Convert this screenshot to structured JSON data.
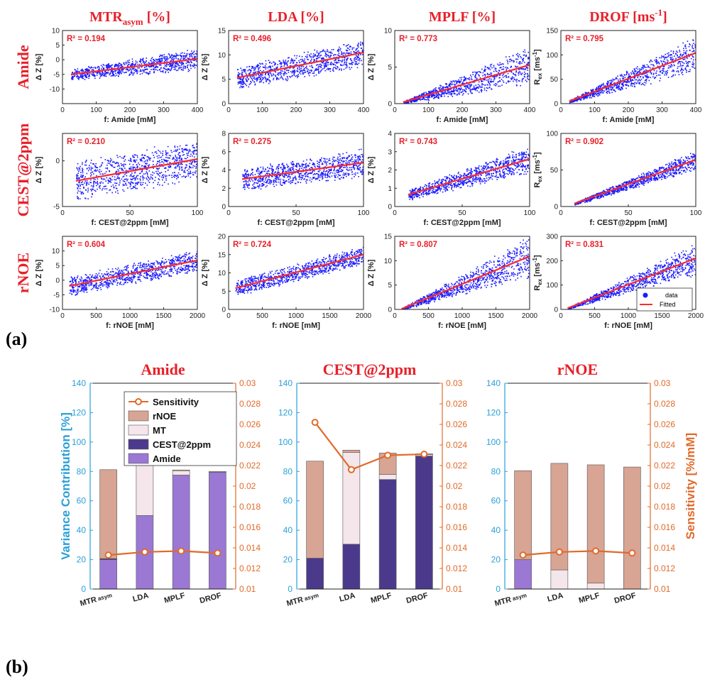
{
  "panel_labels": [
    "(a)",
    "(b)"
  ],
  "colors": {
    "title_red": "#e8202a",
    "scatter_blue": "#1a1aff",
    "fit_red": "#ff2a2a",
    "left_axis": "#2aa0d8",
    "right_axis": "#e06a2a",
    "amide": "#9a78d4",
    "cest2ppm": "#4b3a8c",
    "mt": "#f4e6ea",
    "rnoe": "#d8a494",
    "sensitivity": "#e06a2a"
  },
  "chart_data": [
    {
      "type": "scatter",
      "panel": "(a)",
      "col_titles": [
        {
          "base": "MTR",
          "sub": "asym",
          "tail": " [%]"
        },
        {
          "base": "LDA [%]",
          "sub": "",
          "tail": ""
        },
        {
          "base": "MPLF [%]",
          "sub": "",
          "tail": ""
        },
        {
          "base": "DROF [ms",
          "sup": "-1",
          "tail": "]"
        }
      ],
      "row_titles": [
        "Amide",
        "CEST@2ppm",
        "rNOE"
      ],
      "legend": {
        "entries": [
          "data",
          "Fitted"
        ],
        "placement": "bottom-right of row 3, col 4"
      },
      "subplots": [
        {
          "row": 0,
          "col": 0,
          "r2": "R² = 0.194",
          "xlabel": "f: Amide [mM]",
          "ylabel": "Δ Z [%]",
          "xlim": [
            0,
            400
          ],
          "ylim": [
            -15,
            10
          ],
          "xticks": [
            0,
            100,
            200,
            300,
            400
          ],
          "yticks": [
            -10,
            -5,
            0,
            5,
            10
          ],
          "x": [
            25,
            400
          ],
          "fit": [
            -5,
            0.3
          ],
          "band": [
            [
              25,
              400
            ],
            [
              -10,
              -12,
              -6,
              6,
              8,
              2
            ]
          ],
          "shape": "flat"
        },
        {
          "row": 0,
          "col": 1,
          "r2": "R² = 0.496",
          "xlabel": "",
          "ylabel": "Δ Z [%]",
          "xlim": [
            0,
            400
          ],
          "ylim": [
            0,
            15
          ],
          "xticks": [
            0,
            100,
            200,
            300,
            400
          ],
          "yticks": [
            0,
            5,
            10,
            15
          ],
          "x": [
            25,
            400
          ],
          "fit": [
            5.3,
            10.5
          ],
          "shape": "flat",
          "spread": [
            2.5,
            3
          ]
        },
        {
          "row": 0,
          "col": 2,
          "r2": "R² = 0.773",
          "xlabel": "f: Amide [mM]",
          "ylabel": "Δ Z [%]",
          "xlim": [
            0,
            400
          ],
          "ylim": [
            0,
            10
          ],
          "xticks": [
            0,
            100,
            200,
            300,
            400
          ],
          "yticks": [
            0,
            5,
            10
          ],
          "x": [
            25,
            400
          ],
          "fit": [
            0.2,
            5.3
          ],
          "shape": "fan",
          "spread": [
            0.2,
            2.8
          ]
        },
        {
          "row": 0,
          "col": 3,
          "r2": "R² = 0.795",
          "xlabel": "f: Amide [mM]",
          "ylabel": "R_ex [ms^-1]",
          "xlim": [
            0,
            400
          ],
          "ylim": [
            0,
            150
          ],
          "xticks": [
            0,
            100,
            200,
            300,
            400
          ],
          "yticks": [
            0,
            50,
            100,
            150
          ],
          "x": [
            25,
            400
          ],
          "fit": [
            5,
            104
          ],
          "shape": "fan",
          "spread": [
            3,
            40
          ]
        },
        {
          "row": 1,
          "col": 0,
          "r2": "R² = 0.210",
          "xlabel": "f: CEST@2ppm [mM]",
          "ylabel": "Δ Z [%]",
          "xlim": [
            0,
            100
          ],
          "ylim": [
            -5,
            3
          ],
          "xticks": [
            0,
            50,
            100
          ],
          "yticks": [
            -5,
            0
          ],
          "x": [
            10,
            100
          ],
          "fit": [
            -2.2,
            0.2
          ],
          "shape": "flat",
          "spread": [
            2.3,
            2.3
          ]
        },
        {
          "row": 1,
          "col": 1,
          "r2": "R² = 0.275",
          "xlabel": "f: CEST@2ppm [mM]",
          "ylabel": "Δ Z [%]",
          "xlim": [
            0,
            100
          ],
          "ylim": [
            0,
            8
          ],
          "xticks": [
            0,
            50,
            100
          ],
          "yticks": [
            0,
            2,
            4,
            6,
            8
          ],
          "x": [
            10,
            100
          ],
          "fit": [
            3,
            4.8
          ],
          "shape": "flat",
          "spread": [
            1.3,
            1.6
          ]
        },
        {
          "row": 1,
          "col": 2,
          "r2": "R² = 0.743",
          "xlabel": "f: CEST@2ppm [mM]",
          "ylabel": "Δ Z [%]",
          "xlim": [
            0,
            100
          ],
          "ylim": [
            0,
            4
          ],
          "xticks": [
            0,
            50,
            100
          ],
          "yticks": [
            0,
            1,
            2,
            3,
            4
          ],
          "x": [
            10,
            100
          ],
          "fit": [
            0.65,
            2.6
          ],
          "shape": "fan",
          "spread": [
            0.3,
            0.8
          ]
        },
        {
          "row": 1,
          "col": 3,
          "r2": "R² = 0.902",
          "xlabel": "f: CEST@2ppm [mM]",
          "ylabel": "R_ex [ms^-1]",
          "xlim": [
            0,
            100
          ],
          "ylim": [
            0,
            100
          ],
          "xticks": [
            0,
            50,
            100
          ],
          "yticks": [
            0,
            50,
            100
          ],
          "x": [
            10,
            100
          ],
          "fit": [
            4,
            64
          ],
          "shape": "fan",
          "spread": [
            2,
            15
          ]
        },
        {
          "row": 2,
          "col": 0,
          "r2": "R² = 0.604",
          "xlabel": "f: rNOE [mM]",
          "ylabel": "Δ Z [%]",
          "xlim": [
            0,
            2000
          ],
          "ylim": [
            -10,
            15
          ],
          "xticks": [
            0,
            500,
            1000,
            1500,
            2000
          ],
          "yticks": [
            -10,
            -5,
            0,
            5,
            10
          ],
          "x": [
            100,
            2000
          ],
          "fit": [
            -2,
            6.8
          ],
          "shape": "flat",
          "spread": [
            3.5,
            4
          ]
        },
        {
          "row": 2,
          "col": 1,
          "r2": "R² = 0.724",
          "xlabel": "f: rNOE [mM]",
          "ylabel": "Δ Z [%]",
          "xlim": [
            0,
            2000
          ],
          "ylim": [
            0,
            20
          ],
          "xticks": [
            0,
            500,
            1000,
            1500,
            2000
          ],
          "yticks": [
            0,
            5,
            10,
            15,
            20
          ],
          "x": [
            100,
            2000
          ],
          "fit": [
            5.8,
            15
          ],
          "shape": "flat",
          "spread": [
            2.3,
            2.8
          ]
        },
        {
          "row": 2,
          "col": 2,
          "r2": "R² = 0.807",
          "xlabel": "f: rNOE [mM]",
          "ylabel": "Δ Z [%]",
          "xlim": [
            0,
            2000
          ],
          "ylim": [
            0,
            15
          ],
          "xticks": [
            0,
            500,
            1000,
            1500,
            2000
          ],
          "yticks": [
            0,
            5,
            10,
            15
          ],
          "x": [
            100,
            2000
          ],
          "fit": [
            0.1,
            10.9
          ],
          "shape": "fan",
          "spread": [
            0.2,
            4.5
          ]
        },
        {
          "row": 2,
          "col": 3,
          "r2": "R² = 0.831",
          "xlabel": "f: rNOE [mM]",
          "ylabel": "R_ex [ms^-1]",
          "xlim": [
            0,
            2000
          ],
          "ylim": [
            0,
            300
          ],
          "xticks": [
            0,
            500,
            1000,
            1500,
            2000
          ],
          "yticks": [
            0,
            100,
            200,
            300
          ],
          "x": [
            100,
            2000
          ],
          "fit": [
            5,
            210
          ],
          "shape": "fan",
          "spread": [
            3,
            70
          ]
        }
      ]
    },
    {
      "type": "bar",
      "panel": "(b)",
      "stacked": true,
      "categories": [
        "MTR_asym",
        "LDA",
        "MPLF",
        "DROF"
      ],
      "y_left_label": "Variance Contribution [%]",
      "y_right_label": "Sensitivity [%/mM]",
      "ylim_left": [
        0,
        140
      ],
      "yticks_left": [
        0,
        20,
        40,
        60,
        80,
        100,
        120,
        140
      ],
      "ylim_right": [
        0.01,
        0.03
      ],
      "yticks_right": [
        "0.01",
        "0.012",
        "0.014",
        "0.016",
        "0.018",
        "0.02",
        "0.022",
        "0.024",
        "0.026",
        "0.028",
        "0.03"
      ],
      "legend": {
        "entries": [
          "Sensitivity",
          "rNOE",
          "MT",
          "CEST@2ppm",
          "Amide"
        ],
        "placement": "top-left of first chart"
      },
      "charts": [
        {
          "title": "Amide",
          "series": [
            {
              "name": "Amide",
              "values": [
                20,
                50,
                77.5,
                79.5
              ]
            },
            {
              "name": "CEST@2ppm",
              "values": [
                0.7,
                0,
                0,
                0
              ]
            },
            {
              "name": "MT",
              "values": [
                0,
                36.5,
                3,
                0
              ]
            },
            {
              "name": "rNOE",
              "values": [
                60.5,
                0.6,
                0.5,
                0.5
              ]
            }
          ],
          "sensitivity": [
            0.0133,
            0.0136,
            0.0137,
            0.0135
          ]
        },
        {
          "title": "CEST@2ppm",
          "series": [
            {
              "name": "Amide",
              "values": [
                0,
                0,
                0,
                0
              ]
            },
            {
              "name": "CEST@2ppm",
              "values": [
                21,
                30.5,
                74.5,
                90.5
              ]
            },
            {
              "name": "MT",
              "values": [
                0,
                62.5,
                3.5,
                1
              ]
            },
            {
              "name": "rNOE",
              "values": [
                66,
                1.5,
                14.5,
                0.5
              ]
            }
          ],
          "sensitivity": [
            0.0262,
            0.0216,
            0.023,
            0.0231
          ]
        },
        {
          "title": "rNOE",
          "series": [
            {
              "name": "Amide",
              "values": [
                20,
                0,
                0,
                0
              ]
            },
            {
              "name": "CEST@2ppm",
              "values": [
                0,
                0,
                0,
                0
              ]
            },
            {
              "name": "MT",
              "values": [
                0,
                13,
                4,
                0
              ]
            },
            {
              "name": "rNOE",
              "values": [
                60.5,
                72.5,
                80.5,
                83
              ]
            }
          ],
          "sensitivity": [
            0.0133,
            0.0136,
            0.0137,
            0.0135
          ]
        }
      ]
    }
  ]
}
